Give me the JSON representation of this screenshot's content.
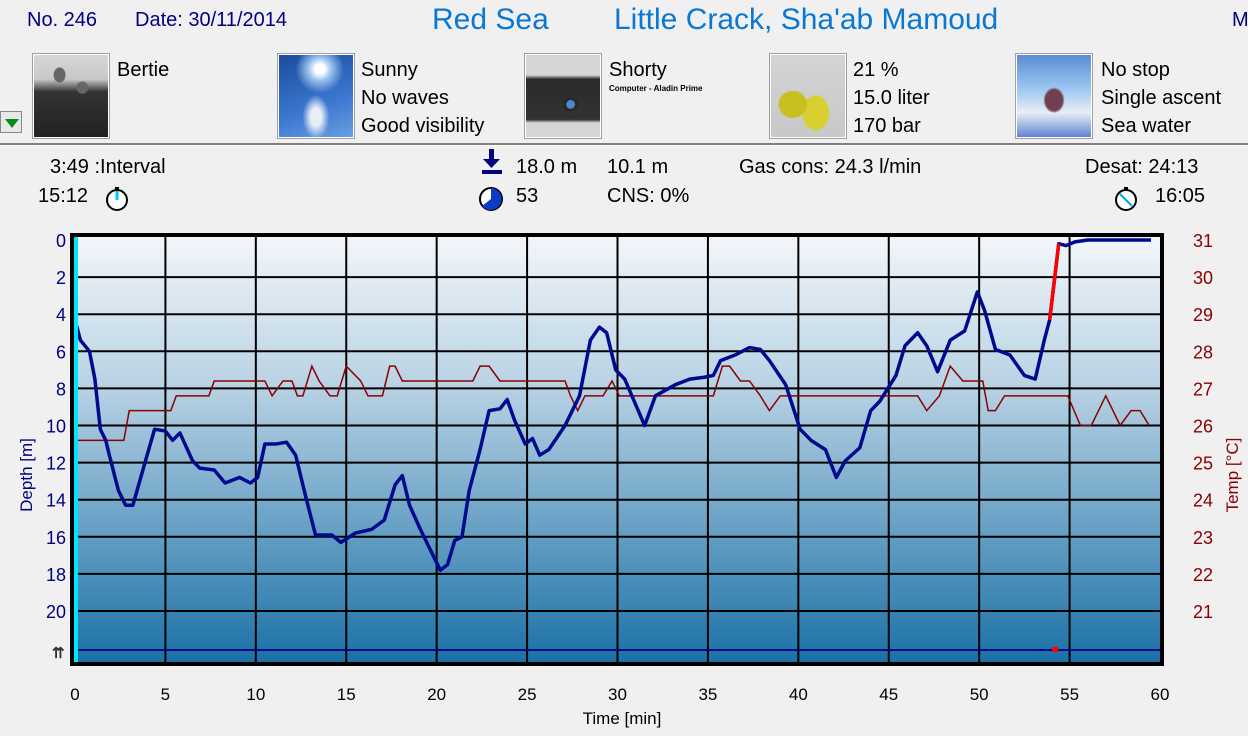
{
  "header": {
    "dive_no": "No. 246",
    "date": "Date: 30/11/2014",
    "region": "Red Sea",
    "site": "Little Crack, Sha'ab Mamoud",
    "truncated_right": "M"
  },
  "info_row": {
    "buddy": {
      "icon": "divers-photo-icon",
      "lines": [
        "Bertie"
      ]
    },
    "conditions": {
      "icon": "sky-photo-icon",
      "lines": [
        "Sunny",
        "No waves",
        "Good visibility"
      ]
    },
    "equipment": {
      "icon": "dive-bag-icon",
      "lines": [
        "Shorty"
      ],
      "note": "Computer - Aladin Prime"
    },
    "tank": {
      "icon": "tanks-icon",
      "lines": [
        "21 %",
        "15.0 liter",
        "170 bar"
      ]
    },
    "dive_type": {
      "icon": "diver-photo-icon",
      "lines": [
        "No stop",
        "Single ascent",
        "Sea water"
      ]
    }
  },
  "stats": {
    "interval": "3:49 :Interval",
    "entry_time": "15:12",
    "max_depth": "18.0 m",
    "avg_depth": "10.1 m",
    "duration": "53",
    "cns": "CNS:  0%",
    "gas_cons": "Gas cons: 24.3 l/min",
    "desat": "Desat: 24:13",
    "exit_time": "16:05"
  },
  "colors": {
    "depth": "#000a8c",
    "temp": "#8b0000",
    "ascent_warning": "#ff0000",
    "cursor": "#00e5ff",
    "title": "#0a78d2"
  },
  "chart_data": {
    "type": "line",
    "xlabel": "Time [min]",
    "ylabel": "Depth [m]",
    "y2label": "Temp [°C]",
    "xlim": [
      0,
      60
    ],
    "ylim": [
      0,
      20
    ],
    "y2lim": [
      21,
      31
    ],
    "y_inverted": true,
    "grid": true,
    "x_ticks": [
      "0",
      "5",
      "10",
      "15",
      "20",
      "25",
      "30",
      "35",
      "40",
      "45",
      "50",
      "55",
      "60"
    ],
    "y_ticks": [
      "0",
      "2",
      "4",
      "6",
      "8",
      "10",
      "12",
      "14",
      "16",
      "18",
      "20"
    ],
    "y2_ticks": [
      "31",
      "30",
      "29",
      "28",
      "27",
      "26",
      "25",
      "24",
      "23",
      "22",
      "21"
    ],
    "ascent_warning_range": [
      53.9,
      54.4
    ],
    "ascent_marker_time": 54.2,
    "depth": {
      "t": [
        0,
        0.3,
        0.8,
        1.1,
        1.4,
        1.7,
        1.9,
        2.4,
        2.8,
        3.2,
        3.9,
        4.4,
        5,
        5.4,
        5.8,
        6.5,
        6.9,
        7.7,
        8.3,
        9.1,
        9.7,
        10.1,
        10.5,
        11.1,
        11.7,
        12.2,
        12.8,
        13.3,
        14.2,
        14.7,
        15.5,
        16.4,
        17.1,
        17.7,
        18.1,
        18.5,
        19.1,
        20.2,
        20.6,
        21,
        21.4,
        21.8,
        22.4,
        22.9,
        23.5,
        23.9,
        24.3,
        24.9,
        25.3,
        25.7,
        26.2,
        27.1,
        27.9,
        28.5,
        29,
        29.4,
        29.9,
        30.4,
        31.5,
        32.1,
        33.2,
        34,
        34.8,
        35.3,
        35.7,
        36.5,
        37.3,
        37.9,
        38.4,
        39.3,
        40.1,
        40.7,
        41.5,
        42.1,
        42.6,
        43.4,
        44,
        44.5,
        45.4,
        45.9,
        46.6,
        47.1,
        47.7,
        48.4,
        49.2,
        49.9,
        50.3,
        50.9,
        51.7,
        52.5,
        53.1,
        53.6,
        53.9,
        54.4,
        54.8,
        55.3,
        56,
        57,
        58,
        59.5
      ],
      "d": [
        4.3,
        5.4,
        6,
        7.5,
        10.2,
        10.8,
        11.6,
        13.5,
        14.3,
        14.3,
        11.9,
        10.2,
        10.3,
        10.8,
        10.4,
        11.9,
        12.3,
        12.4,
        13.1,
        12.8,
        13.1,
        12.8,
        11,
        11,
        10.9,
        11.6,
        14,
        15.9,
        15.9,
        16.3,
        15.8,
        15.6,
        15.1,
        13.2,
        12.7,
        14.3,
        15.6,
        17.8,
        17.5,
        16.2,
        16,
        13.5,
        11.3,
        9.2,
        9.1,
        8.6,
        9.7,
        11,
        10.7,
        11.6,
        11.3,
        10,
        8.4,
        5.4,
        4.7,
        5,
        7,
        7.5,
        10,
        8.4,
        7.8,
        7.5,
        7.4,
        7.3,
        6.5,
        6.2,
        5.8,
        5.9,
        6.5,
        7.8,
        10.2,
        10.8,
        11.3,
        12.8,
        11.9,
        11.2,
        9.2,
        8.7,
        7.3,
        5.7,
        5,
        5.7,
        7.1,
        5.4,
        4.9,
        2.8,
        3.8,
        5.9,
        6.2,
        7.3,
        7.5,
        5.4,
        4.3,
        0.2,
        0.3,
        0.1,
        0,
        0,
        0,
        0
      ]
    },
    "temperature": {
      "t": [
        0,
        2.7,
        3.0,
        5.3,
        5.6,
        7.4,
        7.7,
        10.5,
        10.9,
        11.5,
        12,
        12.3,
        12.6,
        13.1,
        13.5,
        14.1,
        14.5,
        15,
        15.8,
        16.2,
        17,
        17.4,
        17.7,
        18.1,
        22,
        22.4,
        22.9,
        23.5,
        27.1,
        27.4,
        27.8,
        28.2,
        29.2,
        29.7,
        30.1,
        35.3,
        35.8,
        36.2,
        36.8,
        37.3,
        37.9,
        38.4,
        39,
        46.6,
        47.1,
        47.8,
        48.4,
        49.1,
        50.2,
        50.5,
        50.9,
        51.4,
        54.9,
        55.6,
        56.2,
        57,
        57.8,
        58.4,
        58.9,
        59.4
      ],
      "v": [
        25.6,
        25.6,
        26.4,
        26.4,
        26.8,
        26.8,
        27.2,
        27.2,
        26.8,
        27.2,
        27.2,
        26.8,
        26.8,
        27.6,
        27.2,
        26.8,
        26.8,
        27.6,
        27.2,
        26.8,
        26.8,
        27.6,
        27.6,
        27.2,
        27.2,
        27.6,
        27.6,
        27.2,
        27.2,
        26.8,
        26.4,
        26.8,
        26.8,
        27.2,
        26.8,
        26.8,
        27.6,
        27.6,
        27.2,
        27.2,
        26.8,
        26.4,
        26.8,
        26.8,
        26.4,
        26.8,
        27.6,
        27.2,
        27.2,
        26.4,
        26.4,
        26.8,
        26.8,
        26.0,
        26.0,
        26.8,
        26.0,
        26.4,
        26.4,
        26.0
      ]
    }
  }
}
